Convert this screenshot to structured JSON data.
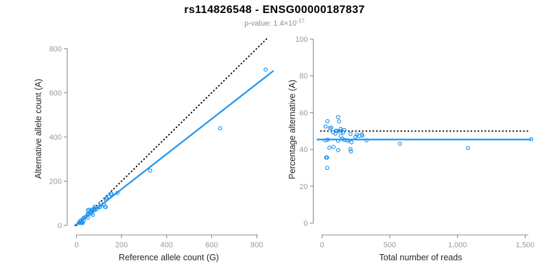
{
  "header": {
    "title": "rs114826548 - ENSG00000187837",
    "pvalue_text": "p-value: 1.4×10",
    "pvalue_exponent": "-17"
  },
  "colors": {
    "accent_blue": "#2196F3",
    "dotted_black": "#000000",
    "axis_line": "#8B8B8B",
    "tick_label": "#999999",
    "axis_title": "#262626",
    "title_text": "#000000",
    "subtitle_text": "#8C8C8C"
  },
  "chart_data": [
    {
      "type": "scatter",
      "position": "left",
      "title": "",
      "xlabel": "Reference allele count (G)",
      "ylabel": "Alternative allele count (A)",
      "xlim": [
        0,
        880
      ],
      "ylim": [
        0,
        850
      ],
      "xticks": [
        0,
        200,
        400,
        600,
        800
      ],
      "xtick_labels": [
        "0",
        "200",
        "400",
        "600",
        "800"
      ],
      "yticks": [
        0,
        200,
        400,
        600,
        800
      ],
      "ytick_labels": [
        "0",
        "200",
        "400",
        "600",
        "800"
      ],
      "grid": false,
      "legend": false,
      "marker": "open-circle",
      "points": [
        [
          12,
          14
        ],
        [
          18,
          22
        ],
        [
          28,
          30
        ],
        [
          33,
          35
        ],
        [
          41,
          39
        ],
        [
          51,
          48
        ],
        [
          50,
          51
        ],
        [
          53,
          53
        ],
        [
          50,
          68
        ],
        [
          56,
          70
        ],
        [
          61,
          61
        ],
        [
          67,
          70
        ],
        [
          71,
          71
        ],
        [
          79,
          77
        ],
        [
          81,
          84
        ],
        [
          73,
          66
        ],
        [
          81,
          69
        ],
        [
          90,
          74
        ],
        [
          103,
          83
        ],
        [
          13,
          11
        ],
        [
          23,
          19
        ],
        [
          66,
          53
        ],
        [
          105,
          86
        ],
        [
          108,
          102
        ],
        [
          134,
          123
        ],
        [
          144,
          130
        ],
        [
          152,
          142
        ],
        [
          157,
          141
        ],
        [
          131,
          116
        ],
        [
          122,
          95
        ],
        [
          32,
          22
        ],
        [
          50,
          35
        ],
        [
          72,
          47
        ],
        [
          126,
          84
        ],
        [
          130,
          83
        ],
        [
          19,
          11
        ],
        [
          21,
          12
        ],
        [
          24,
          13
        ],
        [
          27,
          11
        ],
        [
          181,
          147
        ],
        [
          327,
          248
        ],
        [
          638,
          440
        ],
        [
          840,
          705
        ]
      ],
      "lines": [
        {
          "name": "expected-50pct-identity-line",
          "style": "dotted",
          "color": "#000000",
          "from": [
            0,
            0
          ],
          "to": [
            850,
            850
          ]
        },
        {
          "name": "fitted-trend-line",
          "style": "solid",
          "color": "#2196F3",
          "from": [
            -10,
            -3
          ],
          "to": [
            875,
            700
          ]
        }
      ]
    },
    {
      "type": "scatter",
      "position": "right",
      "title": "",
      "xlabel": "Total number of reads",
      "ylabel": "Percentage alternative (A)",
      "xlim": [
        0,
        1560
      ],
      "ylim": [
        0,
        100
      ],
      "xticks": [
        0,
        500,
        1000,
        1500
      ],
      "xtick_labels": [
        "0",
        "500",
        "1,000",
        "1,500"
      ],
      "yticks": [
        0,
        20,
        40,
        60,
        80,
        100
      ],
      "ytick_labels": [
        "0",
        "20",
        "40",
        "60",
        "80",
        "100"
      ],
      "grid": false,
      "legend": false,
      "marker": "open-circle",
      "points": [
        [
          26,
          52.5
        ],
        [
          40,
          55.4
        ],
        [
          58,
          51.6
        ],
        [
          68,
          51.8
        ],
        [
          80,
          49.3
        ],
        [
          99,
          48.6
        ],
        [
          101,
          50.1
        ],
        [
          106,
          50.2
        ],
        [
          118,
          57.6
        ],
        [
          126,
          55.3
        ],
        [
          122,
          49.9
        ],
        [
          137,
          51.2
        ],
        [
          142,
          50.1
        ],
        [
          156,
          49.3
        ],
        [
          165,
          50.6
        ],
        [
          139,
          47.4
        ],
        [
          150,
          45.8
        ],
        [
          164,
          45.2
        ],
        [
          186,
          44.9
        ],
        [
          24,
          44.9
        ],
        [
          42,
          45.3
        ],
        [
          119,
          44.7
        ],
        [
          191,
          44.8
        ],
        [
          210,
          48.4
        ],
        [
          257,
          48.0
        ],
        [
          274,
          47.4
        ],
        [
          294,
          48.2
        ],
        [
          298,
          47.5
        ],
        [
          247,
          46.9
        ],
        [
          217,
          43.9
        ],
        [
          54,
          40.9
        ],
        [
          85,
          41.4
        ],
        [
          119,
          39.6
        ],
        [
          210,
          40.2
        ],
        [
          213,
          38.9
        ],
        [
          30,
          35.6
        ],
        [
          33,
          35.6
        ],
        [
          37,
          35.6
        ],
        [
          38,
          30.0
        ],
        [
          328,
          44.9
        ],
        [
          575,
          43.1
        ],
        [
          1078,
          40.8
        ],
        [
          1545,
          45.6
        ]
      ],
      "lines": [
        {
          "name": "expected-50pct-line",
          "style": "dotted",
          "color": "#000000",
          "from": [
            -10,
            50
          ],
          "to": [
            1535,
            50
          ]
        },
        {
          "name": "mean-alt-percentage-line",
          "style": "solid",
          "color": "#2196F3",
          "from": [
            -40,
            45.4
          ],
          "to": [
            1545,
            45.4
          ]
        }
      ]
    }
  ]
}
